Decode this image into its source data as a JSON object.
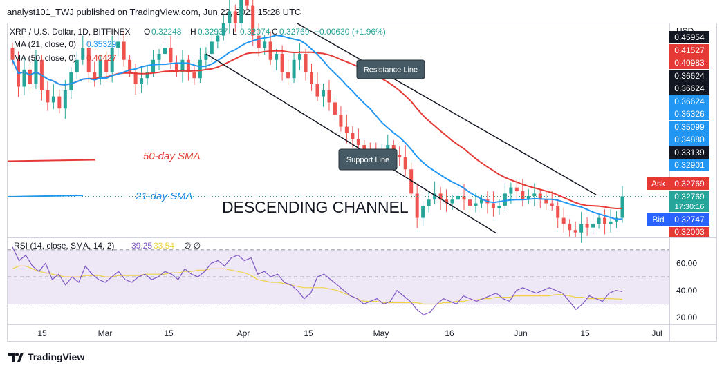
{
  "header": {
    "text": "analyst101_TWJ published on TradingView.com, Jun 22, 2022 15:28 UTC"
  },
  "footer": {
    "brand": "TradingView"
  },
  "legend": {
    "symbol": "XRP / U.S. Dollar, 1D, BITFINEX",
    "o_label": "O",
    "o": "0.32248",
    "h_label": "H",
    "h": "0.32937",
    "l_label": "L",
    "l": "0.32074",
    "c_label": "C",
    "c": "0.32769",
    "change": "+0.00630 (+1.96%)",
    "ma21_label": "MA (21, close, 0)",
    "ma21_value": "0.35329",
    "ma50_label": "MA (50, close, 0)",
    "ma50_value": "0.40427",
    "rsi_label": "RSI (14, close, SMA, 14, 2)",
    "rsi_value": "39.25",
    "rsi_sma_value": "33.54",
    "rsi_extra": "∅  ∅"
  },
  "annotations": {
    "resistance": "Resistance Line",
    "support": "Support Line",
    "sma50": "50-day SMA",
    "sma21": "21-day SMA",
    "channel": "DESCENDING CHANNEL"
  },
  "colors": {
    "up": "#26a69a",
    "down": "#ef5350",
    "ma21": "#2196f3",
    "ma50": "#e53935",
    "rsi": "#7e57c2",
    "rsi_sma": "#f0d24a",
    "rsi_band": "#ede7f6",
    "line": "#131722"
  },
  "chart_data": [
    {
      "type": "candlestick",
      "title": "XRP / U.S. Dollar, 1D, BITFINEX",
      "ylabel": "USD",
      "x_ticks": [
        "15",
        "Mar",
        "15",
        "Apr",
        "15",
        "May",
        "16",
        "Jun",
        "15",
        "Jul"
      ],
      "price_scale_labels": [
        "0.45954",
        "0.41527",
        "0.40983",
        "0.36624",
        "0.36624",
        "0.36624",
        "0.36326",
        "0.35099",
        "0.34880",
        "0.33139",
        "0.32901",
        "0.32769",
        "0.32769",
        "0.32747",
        "0.32003"
      ],
      "price_scale_countdown": "17:30:16",
      "ask_label": "Ask",
      "bid_label": "Bid",
      "ask": 0.32769,
      "bid": 0.32747,
      "last": 0.32769,
      "ylim": [
        0.295,
        0.47
      ],
      "ma21_last": 0.35329,
      "ma50_last": 0.40427,
      "series": [
        {
          "name": "MA (21, close, 0)",
          "line": "ma21"
        },
        {
          "name": "MA (50, close, 0)",
          "line": "ma50"
        }
      ],
      "candles_close_path": [
        0.44,
        0.418,
        0.432,
        0.42,
        0.44,
        0.415,
        0.405,
        0.41,
        0.4,
        0.415,
        0.43,
        0.44,
        0.45,
        0.43,
        0.425,
        0.44,
        0.43,
        0.45,
        0.455,
        0.44,
        0.43,
        0.42,
        0.425,
        0.43,
        0.44,
        0.445,
        0.45,
        0.438,
        0.43,
        0.44,
        0.43,
        0.425,
        0.44,
        0.445,
        0.455,
        0.46,
        0.47,
        0.48,
        0.47,
        0.49,
        0.485,
        0.46,
        0.45,
        0.455,
        0.44,
        0.445,
        0.43,
        0.425,
        0.44,
        0.445,
        0.43,
        0.42,
        0.41,
        0.415,
        0.405,
        0.395,
        0.385,
        0.38,
        0.375,
        0.37,
        0.365,
        0.362,
        0.36,
        0.365,
        0.37,
        0.362,
        0.36,
        0.35,
        0.33,
        0.31,
        0.32,
        0.325,
        0.33,
        0.325,
        0.322,
        0.325,
        0.328,
        0.325,
        0.32,
        0.322,
        0.325,
        0.322,
        0.318,
        0.32,
        0.33,
        0.335,
        0.332,
        0.325,
        0.328,
        0.33,
        0.325,
        0.322,
        0.32,
        0.31,
        0.305,
        0.3,
        0.298,
        0.305,
        0.302,
        0.305,
        0.31,
        0.305,
        0.307,
        0.31,
        0.3277
      ]
    },
    {
      "type": "line",
      "title": "RSI (14, close, SMA, 14, 2)",
      "y_ticks": [
        "60.00",
        "40.00",
        "20.00"
      ],
      "ylim": [
        16,
        78
      ],
      "bands": [
        30,
        50,
        70
      ],
      "series": [
        {
          "name": "RSI",
          "values": [
            72,
            62,
            66,
            58,
            54,
            60,
            48,
            52,
            44,
            50,
            46,
            58,
            52,
            48,
            46,
            50,
            54,
            48,
            46,
            50,
            52,
            48,
            50,
            54,
            52,
            48,
            56,
            52,
            50,
            54,
            60,
            62,
            58,
            64,
            66,
            62,
            64,
            52,
            54,
            50,
            52,
            46,
            44,
            40,
            34,
            38,
            50,
            52,
            48,
            44,
            40,
            36,
            34,
            30,
            32,
            34,
            30,
            32,
            40,
            36,
            32,
            26,
            22,
            24,
            30,
            34,
            32,
            30,
            36,
            34,
            32,
            34,
            36,
            38,
            34,
            32,
            40,
            42,
            40,
            38,
            40,
            42,
            40,
            38,
            32,
            26,
            30,
            36,
            34,
            32,
            38,
            40,
            39.25
          ]
        },
        {
          "name": "RSI SMA",
          "values": [
            56,
            58,
            58,
            56,
            54,
            53,
            52,
            51,
            50,
            50,
            50,
            51,
            51,
            51,
            50,
            50,
            51,
            51,
            51,
            51,
            52,
            52,
            52,
            52,
            53,
            53,
            54,
            54,
            55,
            55,
            56,
            56,
            56,
            55,
            54,
            53,
            51,
            48,
            47,
            46,
            46,
            45,
            44,
            43,
            42,
            42,
            42,
            42,
            41,
            40,
            38,
            36,
            34,
            32,
            32,
            32,
            31,
            31,
            31,
            31,
            31,
            31,
            30,
            30,
            30,
            31,
            31,
            32,
            32,
            33,
            33,
            34,
            34,
            35,
            35,
            35,
            36,
            36,
            36,
            36,
            36,
            36,
            37,
            37,
            36,
            35,
            35,
            34,
            34,
            34,
            34,
            33.8,
            33.54
          ]
        }
      ]
    }
  ]
}
